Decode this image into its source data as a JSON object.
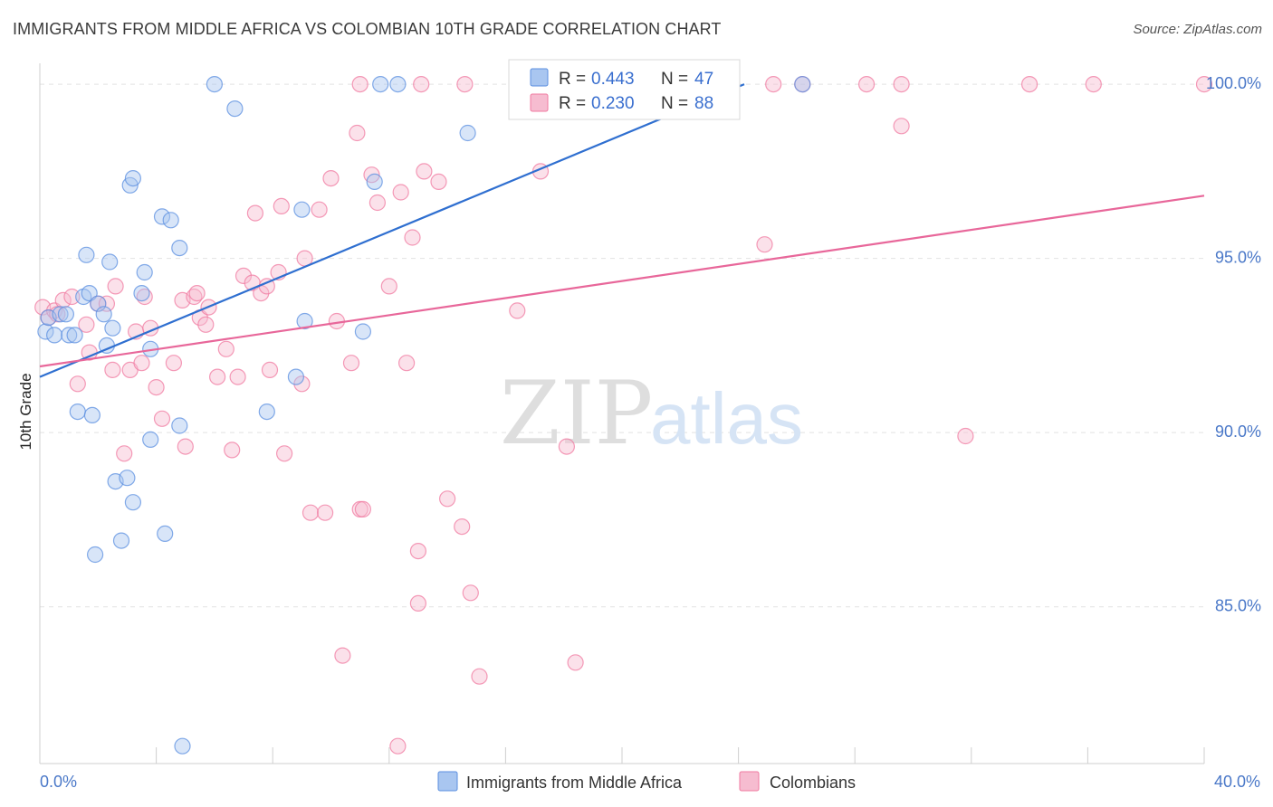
{
  "header": {
    "title": "IMMIGRANTS FROM MIDDLE AFRICA VS COLOMBIAN 10TH GRADE CORRELATION CHART",
    "source": "Source: ZipAtlas.com"
  },
  "watermark": {
    "zip": "ZIP",
    "atlas": "atlas"
  },
  "chart_data": {
    "type": "scatter",
    "title": "IMMIGRANTS FROM MIDDLE AFRICA VS COLOMBIAN 10TH GRADE CORRELATION CHART",
    "xlabel": "",
    "ylabel": "10th Grade",
    "xlim": [
      0,
      40
    ],
    "ylim": [
      80.5,
      100.6
    ],
    "x_tick_labels": [
      "0.0%",
      "40.0%"
    ],
    "y_ticks": [
      85,
      90,
      95,
      100
    ],
    "y_tick_labels": [
      "85.0%",
      "90.0%",
      "95.0%",
      "100.0%"
    ],
    "grid": true,
    "legend_position": "top-center",
    "legend": [
      {
        "r_label": "R = ",
        "r_value": "0.443",
        "n_label": "N = ",
        "n_value": "47",
        "color": "#5b8fe0"
      },
      {
        "r_label": "R = ",
        "r_value": "0.230",
        "n_label": "N = ",
        "n_value": "88",
        "color": "#f07aa0"
      }
    ],
    "series": [
      {
        "name": "Immigrants from Middle Africa",
        "color": "#5b8fe0",
        "fill": "#a9c6f0",
        "trend": {
          "x": [
            0.0,
            24.2
          ],
          "y": [
            91.6,
            100.0
          ]
        },
        "points": [
          [
            0.2,
            92.9
          ],
          [
            0.3,
            93.3
          ],
          [
            0.5,
            92.8
          ],
          [
            0.7,
            93.4
          ],
          [
            0.9,
            93.4
          ],
          [
            1.0,
            92.8
          ],
          [
            1.2,
            92.8
          ],
          [
            1.5,
            93.9
          ],
          [
            1.6,
            95.1
          ],
          [
            1.7,
            94.0
          ],
          [
            2.0,
            93.7
          ],
          [
            2.2,
            93.4
          ],
          [
            2.3,
            92.5
          ],
          [
            2.5,
            93.0
          ],
          [
            2.4,
            94.9
          ],
          [
            3.1,
            97.1
          ],
          [
            3.2,
            97.3
          ],
          [
            3.5,
            94.0
          ],
          [
            3.6,
            94.6
          ],
          [
            3.8,
            92.4
          ],
          [
            4.2,
            96.2
          ],
          [
            4.5,
            96.1
          ],
          [
            4.8,
            95.3
          ],
          [
            1.3,
            90.6
          ],
          [
            1.8,
            90.5
          ],
          [
            3.8,
            89.8
          ],
          [
            4.8,
            90.2
          ],
          [
            2.6,
            88.6
          ],
          [
            3.0,
            88.7
          ],
          [
            3.2,
            88.0
          ],
          [
            2.8,
            86.9
          ],
          [
            1.9,
            86.5
          ],
          [
            4.3,
            87.1
          ],
          [
            4.9,
            81.0
          ],
          [
            6.7,
            99.3
          ],
          [
            9.0,
            96.4
          ],
          [
            9.1,
            93.2
          ],
          [
            8.8,
            91.6
          ],
          [
            7.8,
            90.6
          ],
          [
            11.1,
            92.9
          ],
          [
            11.5,
            97.2
          ],
          [
            11.7,
            100.0
          ],
          [
            12.3,
            100.0
          ],
          [
            14.7,
            98.6
          ],
          [
            26.2,
            100.0
          ],
          [
            6.0,
            100.0
          ],
          [
            18.0,
            100.0
          ]
        ]
      },
      {
        "name": "Colombians",
        "color": "#f07aa0",
        "fill": "#f6bcd0",
        "trend": {
          "x": [
            0.0,
            40.0
          ],
          "y": [
            91.9,
            96.8
          ]
        },
        "points": [
          [
            0.1,
            93.6
          ],
          [
            0.3,
            93.3
          ],
          [
            0.5,
            93.5
          ],
          [
            0.6,
            93.4
          ],
          [
            0.8,
            93.8
          ],
          [
            1.1,
            93.9
          ],
          [
            1.3,
            91.4
          ],
          [
            1.6,
            93.1
          ],
          [
            1.7,
            92.3
          ],
          [
            2.0,
            93.7
          ],
          [
            2.3,
            93.7
          ],
          [
            2.5,
            91.8
          ],
          [
            2.6,
            94.2
          ],
          [
            2.9,
            89.4
          ],
          [
            3.1,
            91.8
          ],
          [
            3.3,
            92.9
          ],
          [
            3.5,
            92.0
          ],
          [
            3.6,
            93.9
          ],
          [
            3.8,
            93.0
          ],
          [
            4.0,
            91.3
          ],
          [
            4.2,
            90.4
          ],
          [
            4.6,
            92.0
          ],
          [
            4.9,
            93.8
          ],
          [
            5.0,
            89.6
          ],
          [
            5.3,
            93.9
          ],
          [
            5.4,
            94.0
          ],
          [
            5.5,
            93.3
          ],
          [
            5.7,
            93.1
          ],
          [
            5.8,
            93.6
          ],
          [
            6.1,
            91.6
          ],
          [
            6.4,
            92.4
          ],
          [
            6.6,
            89.5
          ],
          [
            6.8,
            91.6
          ],
          [
            7.0,
            94.5
          ],
          [
            7.3,
            94.3
          ],
          [
            7.4,
            96.3
          ],
          [
            7.6,
            94.0
          ],
          [
            7.8,
            94.2
          ],
          [
            7.9,
            91.8
          ],
          [
            8.2,
            94.6
          ],
          [
            8.3,
            96.5
          ],
          [
            8.4,
            89.4
          ],
          [
            9.0,
            91.4
          ],
          [
            9.1,
            95.0
          ],
          [
            9.3,
            87.7
          ],
          [
            9.6,
            96.4
          ],
          [
            9.8,
            87.7
          ],
          [
            10.0,
            97.3
          ],
          [
            10.2,
            93.2
          ],
          [
            10.7,
            92.0
          ],
          [
            10.9,
            98.6
          ],
          [
            11.0,
            87.8
          ],
          [
            11.1,
            87.8
          ],
          [
            11.4,
            97.4
          ],
          [
            11.6,
            96.6
          ],
          [
            12.0,
            94.2
          ],
          [
            12.4,
            96.9
          ],
          [
            12.6,
            92.0
          ],
          [
            12.8,
            95.6
          ],
          [
            13.2,
            97.5
          ],
          [
            13.7,
            97.2
          ],
          [
            14.0,
            88.1
          ],
          [
            14.5,
            87.3
          ],
          [
            14.8,
            85.4
          ],
          [
            13.0,
            86.6
          ],
          [
            13.0,
            85.1
          ],
          [
            10.4,
            83.6
          ],
          [
            12.3,
            81.0
          ],
          [
            15.1,
            83.0
          ],
          [
            16.4,
            93.5
          ],
          [
            17.2,
            97.5
          ],
          [
            18.1,
            89.6
          ],
          [
            18.4,
            83.4
          ],
          [
            24.9,
            95.4
          ],
          [
            29.6,
            98.8
          ],
          [
            31.8,
            89.9
          ],
          [
            34.0,
            100.0
          ],
          [
            36.2,
            100.0
          ],
          [
            11.0,
            100.0
          ],
          [
            13.1,
            100.0
          ],
          [
            14.6,
            100.0
          ],
          [
            17.0,
            100.0
          ],
          [
            21.6,
            100.0
          ],
          [
            25.2,
            100.0
          ],
          [
            26.2,
            100.0
          ],
          [
            28.4,
            100.0
          ],
          [
            29.6,
            100.0
          ],
          [
            40.0,
            100.0
          ]
        ]
      }
    ]
  }
}
